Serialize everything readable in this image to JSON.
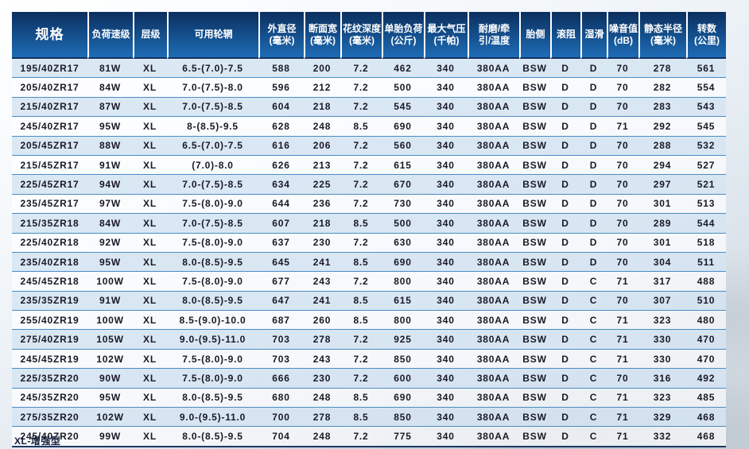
{
  "table": {
    "columns": [
      "规格",
      "负荷速级",
      "层级",
      "可用轮辋",
      "外直径\n(毫米)",
      "断面宽\n(毫米)",
      "花纹深度\n(毫米)",
      "单胎负荷\n(公斤)",
      "最大气压\n(千帕)",
      "耐磨/牵\n引/温度",
      "胎侧",
      "滚阻",
      "湿滑",
      "噪音值\n(dB)",
      "静态半径\n(毫米)",
      "转数\n(公里)"
    ],
    "rows": [
      [
        "195/40ZR17",
        "81W",
        "XL",
        "6.5-(7.0)-7.5",
        "588",
        "200",
        "7.2",
        "462",
        "340",
        "380AA",
        "BSW",
        "D",
        "D",
        "70",
        "278",
        "561"
      ],
      [
        "205/40ZR17",
        "84W",
        "XL",
        "7.0-(7.5)-8.0",
        "596",
        "212",
        "7.2",
        "500",
        "340",
        "380AA",
        "BSW",
        "D",
        "D",
        "70",
        "282",
        "554"
      ],
      [
        "215/40ZR17",
        "87W",
        "XL",
        "7.0-(7.5)-8.5",
        "604",
        "218",
        "7.2",
        "545",
        "340",
        "380AA",
        "BSW",
        "D",
        "D",
        "70",
        "283",
        "543"
      ],
      [
        "245/40ZR17",
        "95W",
        "XL",
        "8-(8.5)-9.5",
        "628",
        "248",
        "8.5",
        "690",
        "340",
        "380AA",
        "BSW",
        "D",
        "D",
        "71",
        "292",
        "545"
      ],
      [
        "205/45ZR17",
        "88W",
        "XL",
        "6.5-(7.0)-7.5",
        "616",
        "206",
        "7.2",
        "560",
        "340",
        "380AA",
        "BSW",
        "D",
        "D",
        "70",
        "288",
        "532"
      ],
      [
        "215/45ZR17",
        "91W",
        "XL",
        "(7.0)-8.0",
        "626",
        "213",
        "7.2",
        "615",
        "340",
        "380AA",
        "BSW",
        "D",
        "D",
        "70",
        "294",
        "527"
      ],
      [
        "225/45ZR17",
        "94W",
        "XL",
        "7.0-(7.5)-8.5",
        "634",
        "225",
        "7.2",
        "670",
        "340",
        "380AA",
        "BSW",
        "D",
        "D",
        "70",
        "297",
        "521"
      ],
      [
        "235/45ZR17",
        "97W",
        "XL",
        "7.5-(8.0)-9.0",
        "644",
        "236",
        "7.2",
        "730",
        "340",
        "380AA",
        "BSW",
        "D",
        "D",
        "70",
        "301",
        "513"
      ],
      [
        "215/35ZR18",
        "84W",
        "XL",
        "7.0-(7.5)-8.5",
        "607",
        "218",
        "8.5",
        "500",
        "340",
        "380AA",
        "BSW",
        "D",
        "D",
        "70",
        "289",
        "544"
      ],
      [
        "225/40ZR18",
        "92W",
        "XL",
        "7.5-(8.0)-9.0",
        "637",
        "230",
        "7.2",
        "630",
        "340",
        "380AA",
        "BSW",
        "D",
        "D",
        "70",
        "301",
        "518"
      ],
      [
        "235/40ZR18",
        "95W",
        "XL",
        "8.0-(8.5)-9.5",
        "645",
        "241",
        "8.5",
        "690",
        "340",
        "380AA",
        "BSW",
        "D",
        "D",
        "70",
        "304",
        "511"
      ],
      [
        "245/45ZR18",
        "100W",
        "XL",
        "7.5-(8.0)-9.0",
        "677",
        "243",
        "7.2",
        "800",
        "340",
        "380AA",
        "BSW",
        "D",
        "C",
        "71",
        "317",
        "488"
      ],
      [
        "235/35ZR19",
        "91W",
        "XL",
        "8.0-(8.5)-9.5",
        "647",
        "241",
        "8.5",
        "615",
        "340",
        "380AA",
        "BSW",
        "D",
        "C",
        "70",
        "307",
        "510"
      ],
      [
        "255/40ZR19",
        "100W",
        "XL",
        "8.5-(9.0)-10.0",
        "687",
        "260",
        "8.5",
        "800",
        "340",
        "380AA",
        "BSW",
        "D",
        "C",
        "71",
        "323",
        "480"
      ],
      [
        "275/40ZR19",
        "105W",
        "XL",
        "9.0-(9.5)-11.0",
        "703",
        "278",
        "7.2",
        "925",
        "340",
        "380AA",
        "BSW",
        "D",
        "C",
        "71",
        "330",
        "470"
      ],
      [
        "245/45ZR19",
        "102W",
        "XL",
        "7.5-(8.0)-9.0",
        "703",
        "243",
        "7.2",
        "850",
        "340",
        "380AA",
        "BSW",
        "D",
        "C",
        "71",
        "330",
        "470"
      ],
      [
        "225/35ZR20",
        "90W",
        "XL",
        "7.5-(8.0)-9.0",
        "666",
        "230",
        "7.2",
        "600",
        "340",
        "380AA",
        "BSW",
        "D",
        "C",
        "70",
        "316",
        "492"
      ],
      [
        "245/35ZR20",
        "95W",
        "XL",
        "8.0-(8.5)-9.5",
        "680",
        "248",
        "8.5",
        "690",
        "340",
        "380AA",
        "BSW",
        "D",
        "C",
        "71",
        "323",
        "485"
      ],
      [
        "275/35ZR20",
        "102W",
        "XL",
        "9.0-(9.5)-11.0",
        "700",
        "278",
        "8.5",
        "850",
        "340",
        "380AA",
        "BSW",
        "D",
        "C",
        "71",
        "329",
        "468"
      ],
      [
        "245/40ZR20",
        "99W",
        "XL",
        "8.0-(8.5)-9.5",
        "704",
        "248",
        "7.2",
        "775",
        "340",
        "380AA",
        "BSW",
        "D",
        "C",
        "71",
        "332",
        "468"
      ]
    ],
    "footer_note": "XL-增强型"
  },
  "colors": {
    "header_top": "#0c2f5e",
    "header_bottom": "#1e6cb5",
    "stripe_row": "#d6e5f2",
    "row_border": "#4a8cc2",
    "text": "#191925"
  }
}
